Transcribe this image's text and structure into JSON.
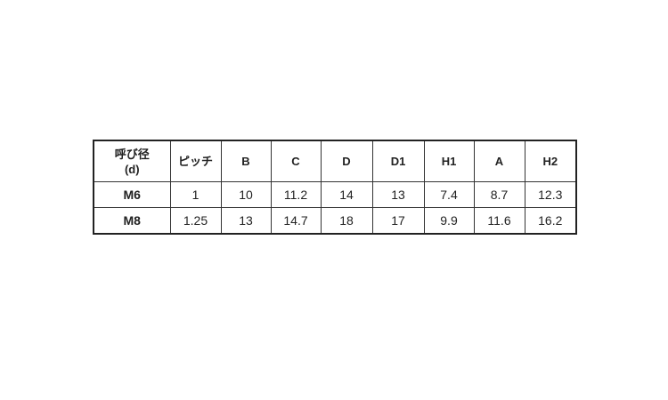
{
  "table": {
    "headers": [
      "呼び径\n(d)",
      "ピッチ",
      "B",
      "C",
      "D",
      "D1",
      "H1",
      "A",
      "H2"
    ],
    "header_line1": "呼び径",
    "header_line2": "(d)",
    "rows": [
      [
        "M6",
        "1",
        "10",
        "11.2",
        "14",
        "13",
        "7.4",
        "8.7",
        "12.3"
      ],
      [
        "M8",
        "1.25",
        "13",
        "14.7",
        "18",
        "17",
        "9.9",
        "11.6",
        "16.2"
      ]
    ]
  }
}
